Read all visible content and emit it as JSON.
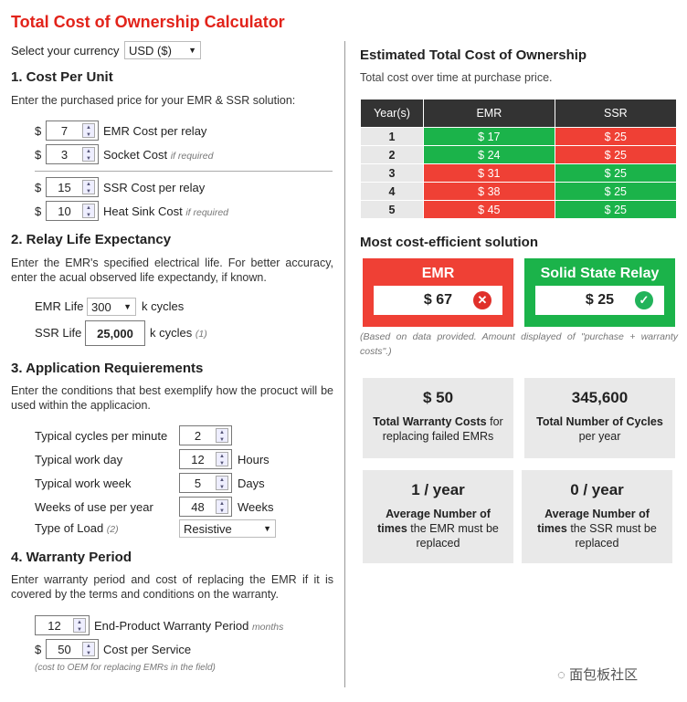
{
  "title": "Total Cost of Ownership Calculator",
  "currency": {
    "label": "Select your currency",
    "value": "USD ($)"
  },
  "s1": {
    "heading": "1. Cost Per Unit",
    "desc": "Enter the purchased price for your EMR & SSR solution:",
    "rows": [
      {
        "sym": "$",
        "value": "7",
        "label": "EMR Cost per relay",
        "note": ""
      },
      {
        "sym": "$",
        "value": "3",
        "label": "Socket Cost",
        "note": "if required"
      },
      {
        "sym": "$",
        "value": "15",
        "label": "SSR Cost per relay",
        "note": ""
      },
      {
        "sym": "$",
        "value": "10",
        "label": "Heat Sink Cost",
        "note": "if required"
      }
    ]
  },
  "s2": {
    "heading": "2. Relay Life Expectancy",
    "desc": "Enter the EMR's specified electrical life. For better accuracy, enter the acual observed life expectandy, if known.",
    "emr_label": "EMR Life",
    "emr_value": "300",
    "emr_unit": "k cycles",
    "ssr_label": "SSR Life",
    "ssr_value": "25,000",
    "ssr_unit": "k cycles",
    "ssr_note": "(1)"
  },
  "s3": {
    "heading": "3. Application Requierements",
    "desc": "Enter the conditions that best exemplify how the procuct will be used within the applicacion.",
    "rows": [
      {
        "label": "Typical cycles per minute",
        "value": "2",
        "unit": ""
      },
      {
        "label": "Typical work day",
        "value": "12",
        "unit": "Hours"
      },
      {
        "label": "Typical work week",
        "value": "5",
        "unit": "Days"
      },
      {
        "label": "Weeks of use per year",
        "value": "48",
        "unit": "Weeks"
      }
    ],
    "load_label": "Type of Load",
    "load_note": "(2)",
    "load_value": "Resistive"
  },
  "s4": {
    "heading": "4. Warranty Period",
    "desc": "Enter warranty period and cost of replacing the EMR if it is covered by the terms and conditions on the warranty.",
    "period_value": "12",
    "period_label": "End-Product Warranty Period",
    "period_unit": "months",
    "cost_sym": "$",
    "cost_value": "50",
    "cost_label": "Cost per Service",
    "note": "(cost to OEM for replacing EMRs in the field)"
  },
  "right": {
    "heading": "Estimated Total Cost of Ownership",
    "sub": "Total cost over time at purchase price.",
    "table": {
      "headers": [
        "Year(s)",
        "EMR",
        "SSR"
      ],
      "rows": [
        {
          "year": "1",
          "emr": "$ 17",
          "ssr": "$ 25",
          "emr_status": "green",
          "ssr_status": "red"
        },
        {
          "year": "2",
          "emr": "$ 24",
          "ssr": "$ 25",
          "emr_status": "green",
          "ssr_status": "red"
        },
        {
          "year": "3",
          "emr": "$ 31",
          "ssr": "$ 25",
          "emr_status": "red",
          "ssr_status": "green"
        },
        {
          "year": "4",
          "emr": "$ 38",
          "ssr": "$ 25",
          "emr_status": "red",
          "ssr_status": "green"
        },
        {
          "year": "5",
          "emr": "$ 45",
          "ssr": "$ 25",
          "emr_status": "red",
          "ssr_status": "green"
        }
      ]
    },
    "best_heading": "Most cost-efficient solution",
    "emr_box": {
      "title": "EMR",
      "value": "$ 67",
      "icon": "x-circle-icon"
    },
    "ssr_box": {
      "title": "Solid State Relay",
      "value": "$ 25",
      "icon": "check-circle-icon"
    },
    "note": "(Based on data provided. Amount displayed of \"purchase + warranty costs\".)",
    "cards": [
      {
        "big": "$ 50",
        "bold": "Total Warranty Costs",
        "rest": "for replacing failed EMRs"
      },
      {
        "big": "345,600",
        "bold": "Total Number of Cycles",
        "rest": "per year"
      },
      {
        "big": "1 / year",
        "bold": "Average Number of times",
        "rest": "the EMR must be replaced"
      },
      {
        "big": "0 / year",
        "bold": "Average Number of times",
        "rest": "the SSR must be replaced"
      }
    ]
  },
  "colors": {
    "red": "#ef4035",
    "green": "#1bb34a",
    "title": "#e2231a"
  },
  "watermark": "面包板社区"
}
